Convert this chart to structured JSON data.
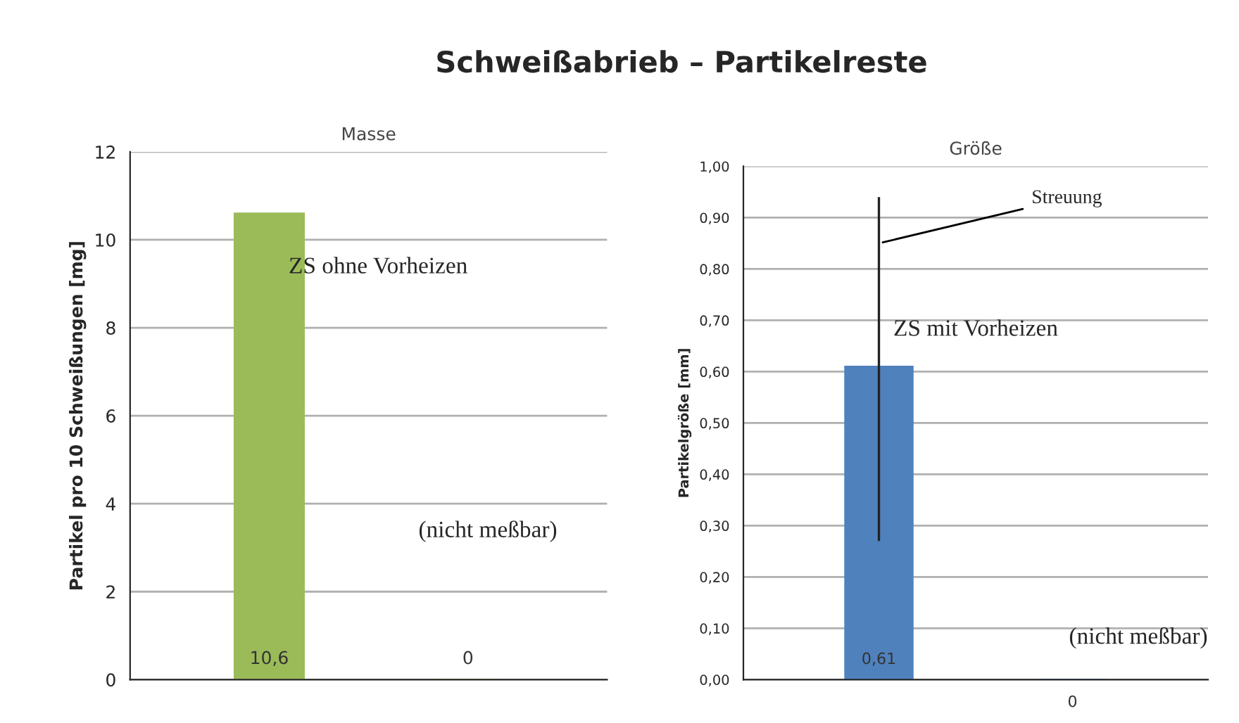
{
  "chart_data": [
    {
      "type": "bar",
      "title": "Masse",
      "ylabel": "Partikel pro 10 Schweißungen [mg]",
      "categories": [
        null,
        null
      ],
      "values": [
        10.6,
        0
      ],
      "value_labels": [
        "10,6",
        "0"
      ],
      "colors": [
        "#9bbb59",
        "#9bbb59"
      ],
      "ylim": [
        0,
        12
      ],
      "yticks": [
        0,
        2,
        4,
        6,
        8,
        10,
        12
      ],
      "grid": "y",
      "annotations": [
        "Schweißabrieb – Partikelreste",
        "ZS ohne Vorheizen",
        "(nicht meßbar)"
      ]
    },
    {
      "type": "bar",
      "title": "Größe",
      "ylabel": "Partikelgröße [mm]",
      "categories": [
        null,
        null
      ],
      "values": [
        0.61,
        0
      ],
      "value_labels": [
        "0,61",
        "0"
      ],
      "errors": [
        [
          0.27,
          0.94
        ],
        null
      ],
      "colors": [
        "#4f81bd",
        "#4f81bd"
      ],
      "ylim": [
        0,
        1
      ],
      "yticks": [
        {
          "value": 0,
          "label": "0,00"
        },
        {
          "value": 0.1,
          "label": "0,10"
        },
        {
          "value": 0.2,
          "label": "0,20"
        },
        {
          "value": 0.3,
          "label": "0,30"
        },
        {
          "value": 0.4,
          "label": "0,40"
        },
        {
          "value": 0.5,
          "label": "0,50"
        },
        {
          "value": 0.6,
          "label": "0,60"
        },
        {
          "value": 0.7,
          "label": "0,70"
        },
        {
          "value": 0.8,
          "label": "0,80"
        },
        {
          "value": 0.9,
          "label": "0,90"
        },
        {
          "value": 1,
          "label": "1,00"
        }
      ],
      "grid": "y",
      "annotations": [
        "Streuung",
        "ZS mit Vorheizen",
        "(nicht meßbar)"
      ]
    }
  ]
}
